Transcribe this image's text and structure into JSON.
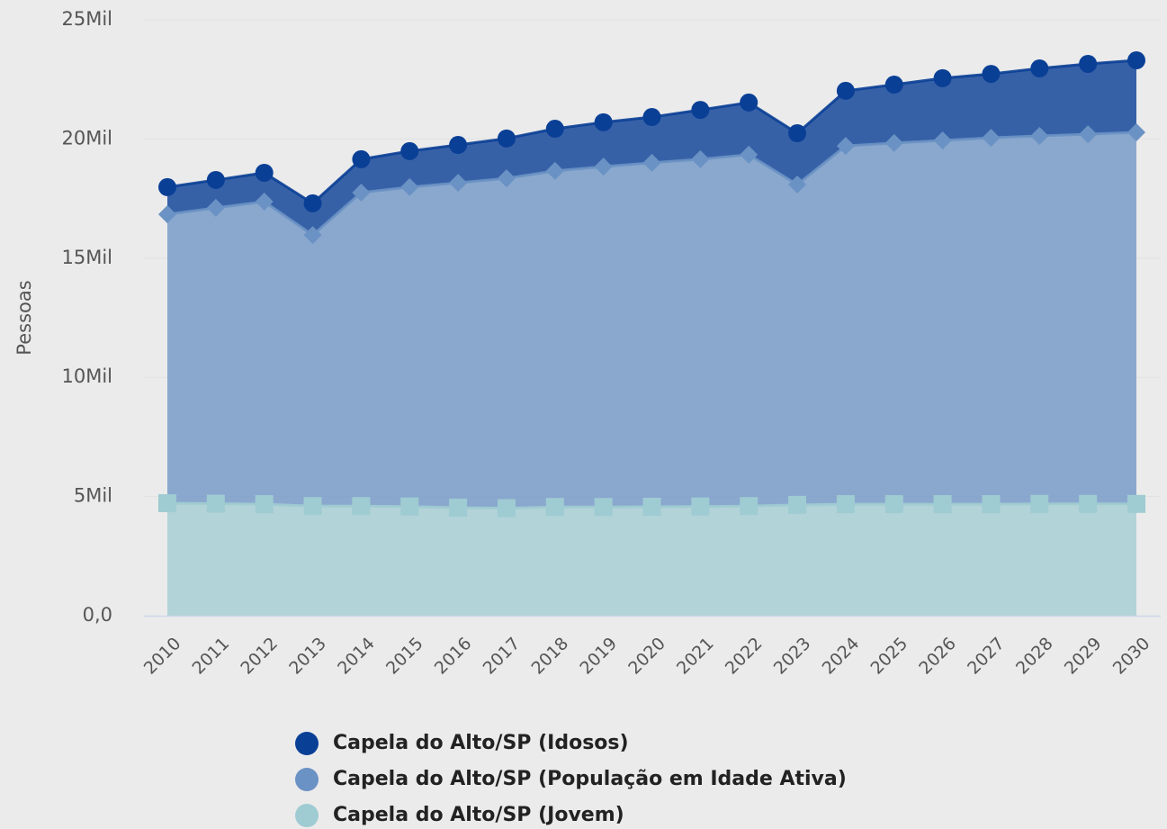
{
  "chart_data": {
    "type": "stacked_area",
    "y_label": "Pessoas",
    "categories": [
      "2010",
      "2011",
      "2012",
      "2013",
      "2014",
      "2015",
      "2016",
      "2017",
      "2018",
      "2019",
      "2020",
      "2021",
      "2022",
      "2023",
      "2024",
      "2025",
      "2026",
      "2027",
      "2028",
      "2029",
      "2030"
    ],
    "series": [
      {
        "name": "Capela do Alto/SP (Idosos)",
        "color": "#0a3f96",
        "marker": "circle",
        "values": [
          1140,
          1170,
          1210,
          1330,
          1400,
          1510,
          1590,
          1670,
          1770,
          1860,
          1920,
          2070,
          2190,
          2150,
          2310,
          2450,
          2610,
          2680,
          2830,
          2950,
          3020
        ]
      },
      {
        "name": "Capela do Alto/SP (População em Idade Ativa)",
        "color": "#6a92c4",
        "marker": "diamond",
        "values": [
          12120,
          12410,
          12690,
          11370,
          13150,
          13400,
          13630,
          13840,
          14100,
          14280,
          14430,
          14570,
          14740,
          13440,
          15030,
          15150,
          15260,
          15370,
          15440,
          15510,
          15590
        ]
      },
      {
        "name": "Capela do Alto/SP (Jovem)",
        "color": "#9fcbd2",
        "marker": "square",
        "values": [
          4720,
          4700,
          4680,
          4600,
          4600,
          4580,
          4530,
          4510,
          4560,
          4560,
          4570,
          4580,
          4600,
          4650,
          4680,
          4680,
          4680,
          4680,
          4690,
          4690,
          4690
        ]
      }
    ],
    "ylim": [
      0,
      25000
    ],
    "yticks": [
      {
        "value": 0,
        "label": "0,0"
      },
      {
        "value": 5000,
        "label": "5Mil"
      },
      {
        "value": 10000,
        "label": "10Mil"
      },
      {
        "value": 15000,
        "label": "15Mil"
      },
      {
        "value": 20000,
        "label": "20Mil"
      },
      {
        "value": 25000,
        "label": "25Mil"
      }
    ],
    "grid": true,
    "legend": "bottom"
  }
}
